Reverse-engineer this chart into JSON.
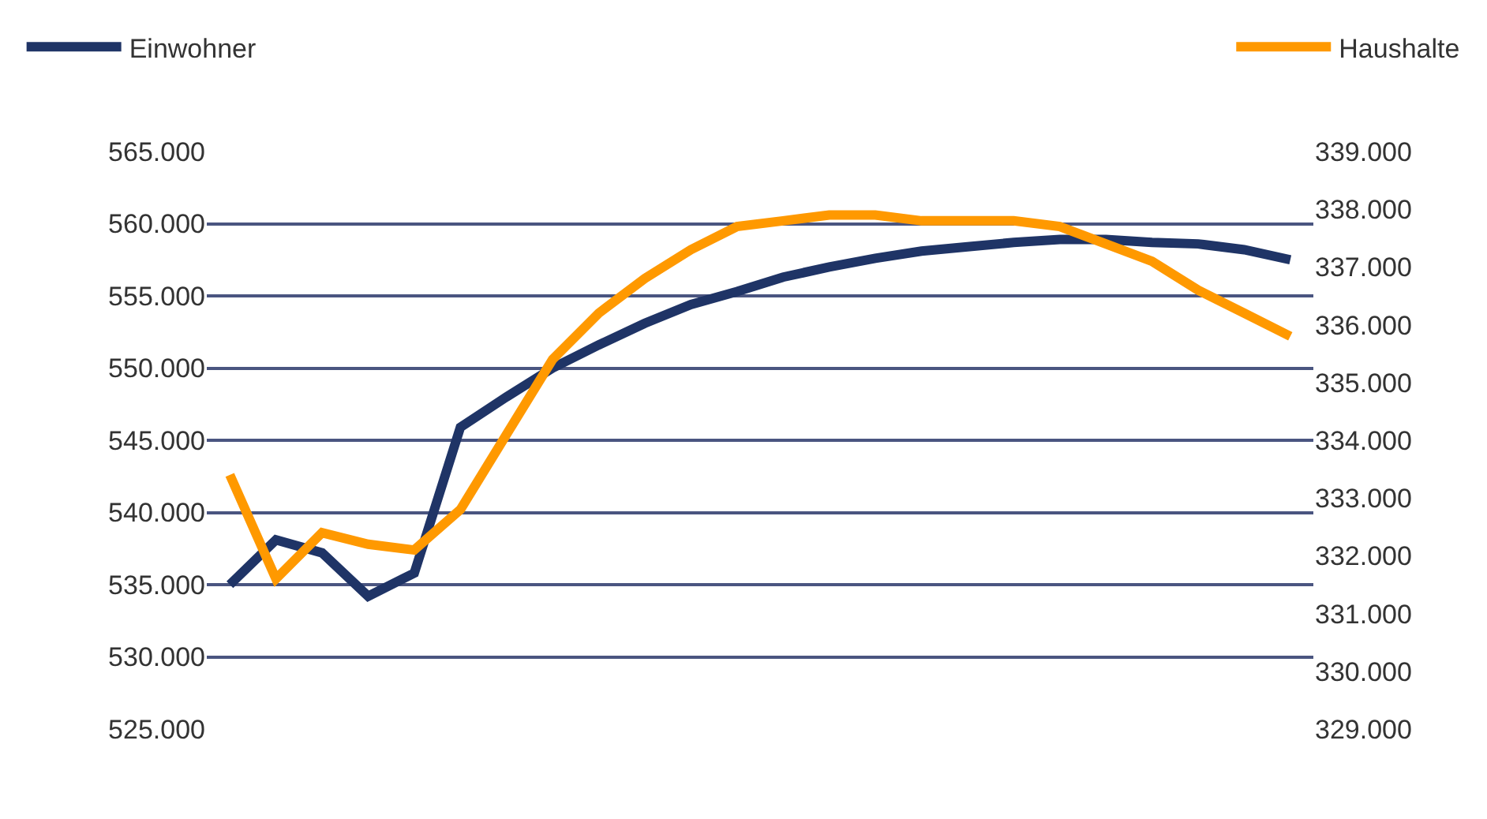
{
  "chart_data": {
    "type": "line",
    "categories": [
      null,
      null,
      null,
      null,
      null,
      null,
      null,
      null,
      null,
      null,
      null,
      null,
      null,
      null,
      null,
      null,
      null,
      null,
      null,
      null,
      null,
      null,
      null,
      null
    ],
    "series": [
      {
        "name": "Einwohner",
        "color": "#1f3466",
        "values": [
          535.0,
          538.1,
          537.2,
          534.2,
          535.8,
          545.9,
          548.0,
          550.0,
          551.6,
          553.1,
          554.4,
          555.3,
          556.3,
          557.0,
          557.6,
          558.1,
          558.4,
          558.7,
          558.9,
          558.9,
          558.7,
          558.6,
          558.2,
          557.5
        ]
      },
      {
        "name": "Haushalte",
        "color": "#ff9900",
        "axis": "y2",
        "values": [
          333.4,
          331.6,
          332.4,
          332.2,
          332.1,
          332.8,
          334.1,
          335.4,
          336.2,
          336.8,
          337.3,
          337.7,
          337.8,
          337.9,
          337.9,
          337.8,
          337.8,
          337.8,
          337.7,
          337.4,
          337.1,
          336.6,
          336.2,
          335.8
        ]
      }
    ],
    "ylim": [
      525,
      565
    ],
    "yticks": [
      {
        "value": 525,
        "label": "525.000"
      },
      {
        "value": 530,
        "label": "530.000"
      },
      {
        "value": 535,
        "label": "535.000"
      },
      {
        "value": 540,
        "label": "540.000"
      },
      {
        "value": 545,
        "label": "545.000"
      },
      {
        "value": 550,
        "label": "550.000"
      },
      {
        "value": 555,
        "label": "555.000"
      },
      {
        "value": 560,
        "label": "560.000"
      },
      {
        "value": 565,
        "label": "565.000"
      }
    ],
    "y2lim": [
      329,
      339
    ],
    "y2ticks": [
      {
        "value": 329,
        "label": "329.000"
      },
      {
        "value": 330,
        "label": "330.000"
      },
      {
        "value": 331,
        "label": "331.000"
      },
      {
        "value": 332,
        "label": "332.000"
      },
      {
        "value": 333,
        "label": "333.000"
      },
      {
        "value": 334,
        "label": "334.000"
      },
      {
        "value": 335,
        "label": "335.000"
      },
      {
        "value": 336,
        "label": "336.000"
      },
      {
        "value": 337,
        "label": "337.000"
      },
      {
        "value": 338,
        "label": "338.000"
      },
      {
        "value": 339,
        "label": "339.000"
      }
    ],
    "grid": "y",
    "legend": "top",
    "marker": "none",
    "line_style": "solid"
  }
}
